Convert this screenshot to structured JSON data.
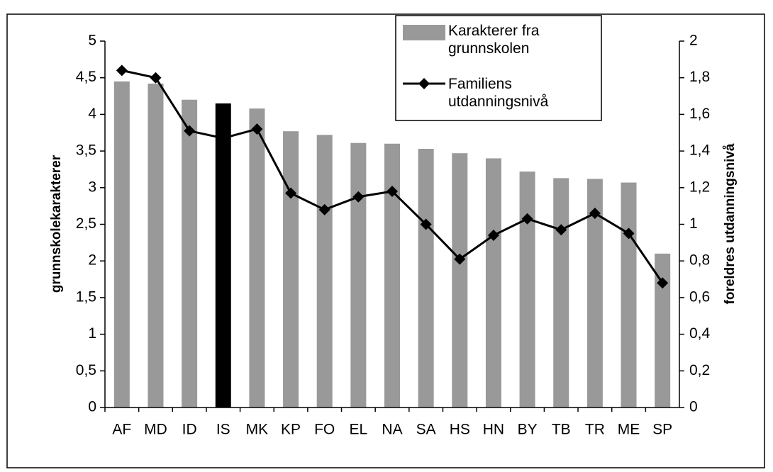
{
  "chart_data": {
    "type": "bar",
    "categories": [
      "AF",
      "MD",
      "ID",
      "IS",
      "MK",
      "KP",
      "FO",
      "EL",
      "NA",
      "SA",
      "HS",
      "HN",
      "BY",
      "TB",
      "TR",
      "ME",
      "SP"
    ],
    "series": [
      {
        "name": "Karakterer fra grunnskolen",
        "type": "bar",
        "color": "#999999",
        "colors": [
          "#999999",
          "#999999",
          "#999999",
          "#000000",
          "#999999",
          "#999999",
          "#999999",
          "#999999",
          "#999999",
          "#999999",
          "#999999",
          "#999999",
          "#999999",
          "#999999",
          "#999999",
          "#999999",
          "#999999"
        ],
        "values": [
          4.45,
          4.42,
          4.2,
          4.15,
          4.08,
          3.77,
          3.72,
          3.61,
          3.6,
          3.53,
          3.47,
          3.4,
          3.22,
          3.13,
          3.12,
          3.07,
          2.1
        ]
      },
      {
        "name": "Familiens utdanningsnivå",
        "type": "line",
        "axis": "y2",
        "color": "#000000",
        "values": [
          1.84,
          1.8,
          1.51,
          1.47,
          1.52,
          1.17,
          1.08,
          1.15,
          1.18,
          1.0,
          0.81,
          0.94,
          1.03,
          0.97,
          1.06,
          0.95,
          0.68
        ]
      }
    ],
    "ylabel": "grunnskolekarakterer",
    "y2label": "foreldres utdanningsnivå",
    "ylim": [
      0,
      5
    ],
    "yticks": [
      0,
      {
        "value": 0.5,
        "label": "0,5"
      },
      1,
      {
        "value": 1.5,
        "label": "1,5"
      },
      2,
      {
        "value": 2.5,
        "label": "2,5"
      },
      3,
      {
        "value": 3.5,
        "label": "3,5"
      },
      4,
      {
        "value": 4.5,
        "label": "4,5"
      },
      5
    ],
    "y2lim": [
      0,
      2
    ],
    "y2ticks": [
      0,
      {
        "value": 0.2,
        "label": "0,2"
      },
      {
        "value": 0.4,
        "label": "0,4"
      },
      {
        "value": 0.6,
        "label": "0,6"
      },
      {
        "value": 0.8,
        "label": "0,8"
      },
      1,
      {
        "value": 1.2,
        "label": "1,2"
      },
      {
        "value": 1.4,
        "label": "1,4"
      },
      {
        "value": 1.6,
        "label": "1,6"
      },
      {
        "value": 1.8,
        "label": "1,8"
      },
      2
    ],
    "legend": "top-right"
  }
}
